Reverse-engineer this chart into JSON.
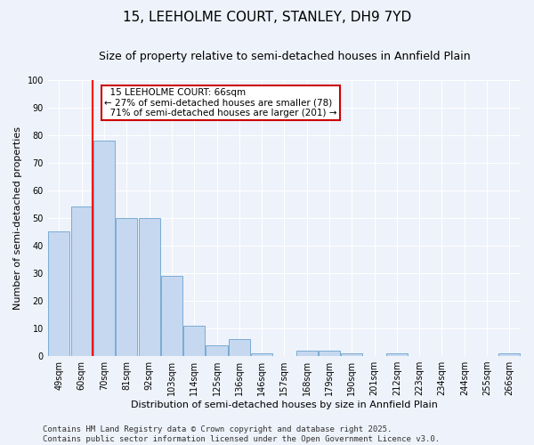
{
  "title": "15, LEEHOLME COURT, STANLEY, DH9 7YD",
  "subtitle": "Size of property relative to semi-detached houses in Annfield Plain",
  "xlabel": "Distribution of semi-detached houses by size in Annfield Plain",
  "ylabel": "Number of semi-detached properties",
  "categories": [
    "49sqm",
    "60sqm",
    "70sqm",
    "81sqm",
    "92sqm",
    "103sqm",
    "114sqm",
    "125sqm",
    "136sqm",
    "146sqm",
    "157sqm",
    "168sqm",
    "179sqm",
    "190sqm",
    "201sqm",
    "212sqm",
    "223sqm",
    "234sqm",
    "244sqm",
    "255sqm",
    "266sqm"
  ],
  "values": [
    45,
    54,
    78,
    50,
    50,
    29,
    11,
    4,
    6,
    1,
    0,
    2,
    2,
    1,
    0,
    1,
    0,
    0,
    0,
    0,
    1
  ],
  "bar_color": "#c5d8f0",
  "bar_edge_color": "#7aacd4",
  "red_line_x": 1.5,
  "red_line_label": "15 LEEHOLME COURT: 66sqm",
  "pct_smaller": "27% of semi-detached houses are smaller (78)",
  "pct_larger": "71% of semi-detached houses are larger (201)",
  "annotation_box_color": "#ffffff",
  "annotation_box_edge": "#cc0000",
  "ylim": [
    0,
    100
  ],
  "yticks": [
    0,
    10,
    20,
    30,
    40,
    50,
    60,
    70,
    80,
    90,
    100
  ],
  "background_color": "#eef2fa",
  "grid_color": "#ffffff",
  "footer": "Contains HM Land Registry data © Crown copyright and database right 2025.\nContains public sector information licensed under the Open Government Licence v3.0.",
  "title_fontsize": 11,
  "subtitle_fontsize": 9,
  "xlabel_fontsize": 8,
  "ylabel_fontsize": 8,
  "tick_fontsize": 7,
  "annotation_fontsize": 7.5,
  "footer_fontsize": 6.5
}
